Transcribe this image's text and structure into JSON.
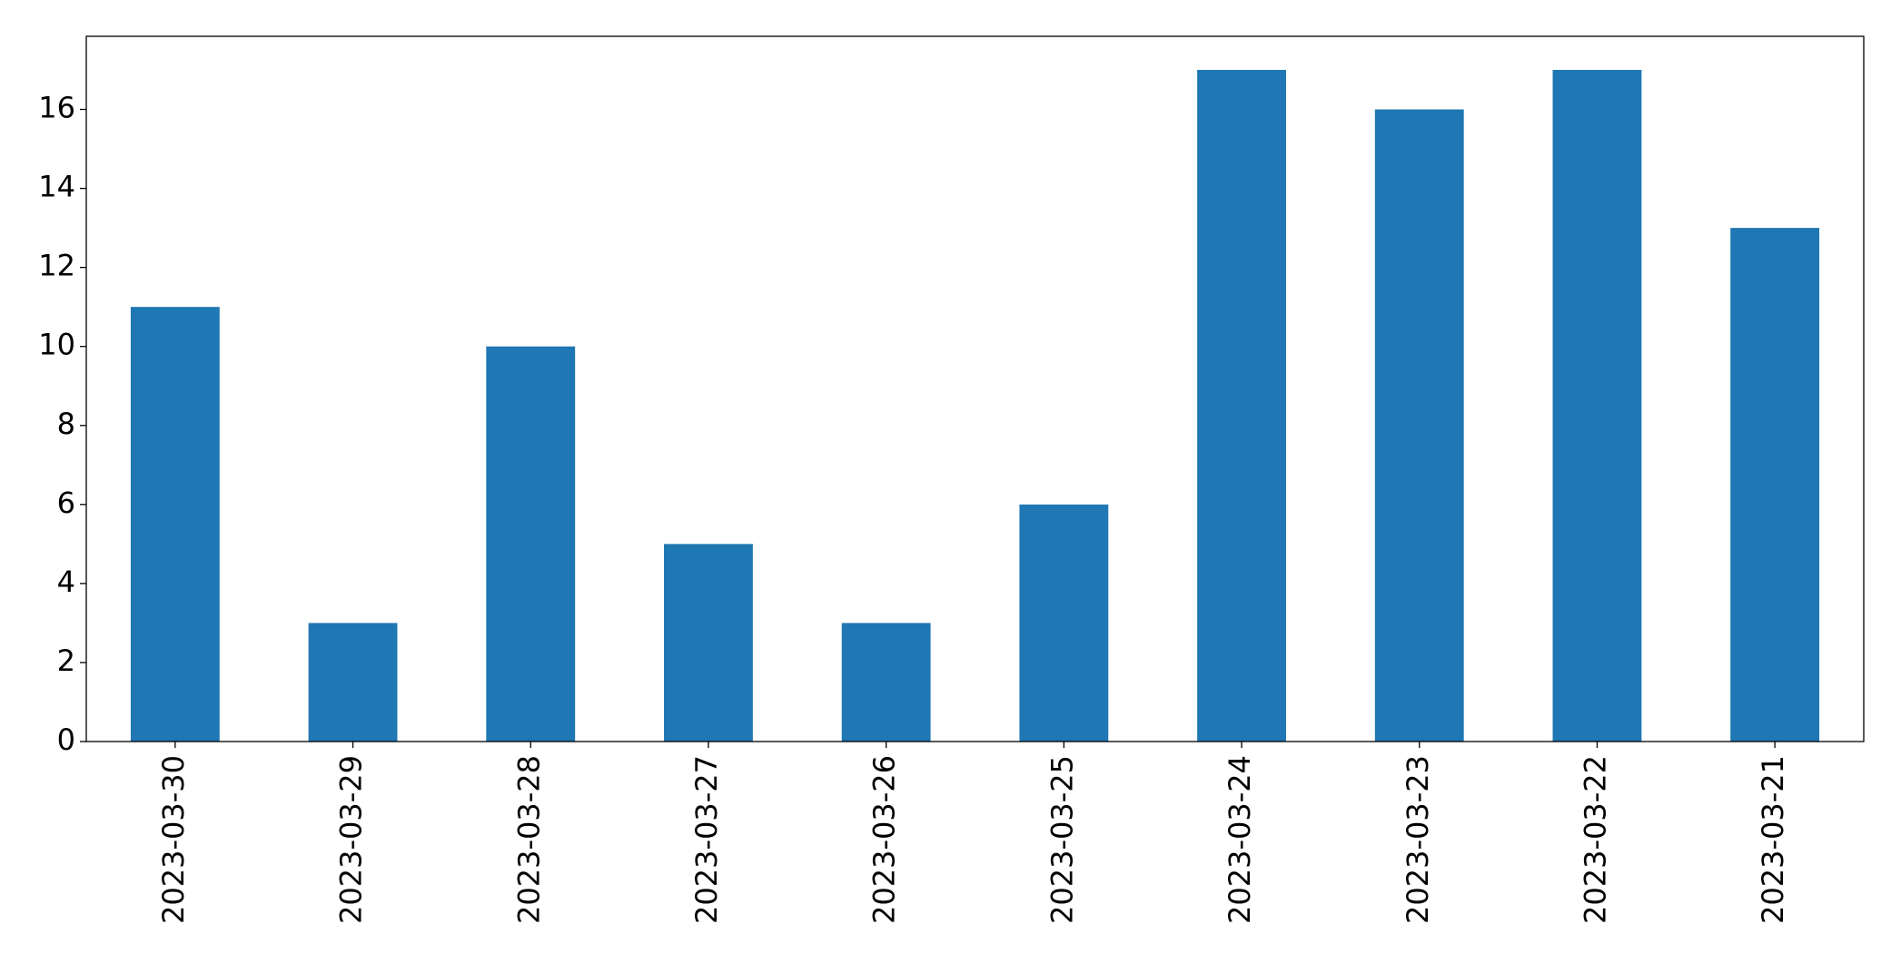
{
  "chart_data": {
    "type": "bar",
    "categories": [
      "2023-03-30",
      "2023-03-29",
      "2023-03-28",
      "2023-03-27",
      "2023-03-26",
      "2023-03-25",
      "2023-03-24",
      "2023-03-23",
      "2023-03-22",
      "2023-03-21"
    ],
    "values": [
      11,
      3,
      10,
      5,
      3,
      6,
      17,
      16,
      17,
      13
    ],
    "color": "#1f77b4",
    "ylim": [
      0,
      17.85
    ],
    "yticks": [
      0,
      2,
      4,
      6,
      8,
      10,
      12,
      14,
      16
    ],
    "grid": false
  }
}
